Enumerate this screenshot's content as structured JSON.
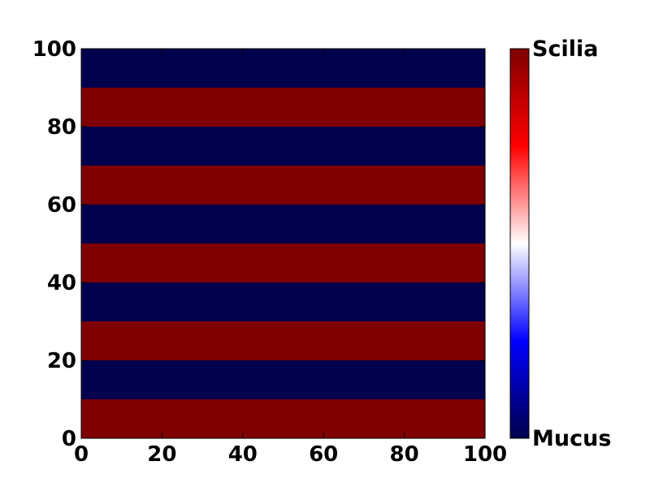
{
  "chart_data": {
    "type": "heatmap",
    "title": "",
    "xlabel": "",
    "ylabel": "",
    "xlim": [
      0,
      100
    ],
    "ylim": [
      0,
      100
    ],
    "xticks": [
      "0",
      "20",
      "40",
      "60",
      "80",
      "100"
    ],
    "yticks": [
      "0",
      "20",
      "40",
      "60",
      "80",
      "100"
    ],
    "colormap": "seismic",
    "colors": {
      "low": "#00004c",
      "mid": "#ffffff",
      "high": "#7f0000"
    },
    "bands": [
      {
        "y0": 0,
        "y1": 10,
        "value": 1
      },
      {
        "y0": 10,
        "y1": 20,
        "value": 0
      },
      {
        "y0": 20,
        "y1": 30,
        "value": 1
      },
      {
        "y0": 30,
        "y1": 40,
        "value": 0
      },
      {
        "y0": 40,
        "y1": 50,
        "value": 1
      },
      {
        "y0": 50,
        "y1": 60,
        "value": 0
      },
      {
        "y0": 60,
        "y1": 70,
        "value": 1
      },
      {
        "y0": 70,
        "y1": 80,
        "value": 0
      },
      {
        "y0": 80,
        "y1": 90,
        "value": 1
      },
      {
        "y0": 90,
        "y1": 100,
        "value": 0
      }
    ],
    "colorbar": {
      "min_label": "Mucus",
      "max_label": "Scilia"
    }
  }
}
